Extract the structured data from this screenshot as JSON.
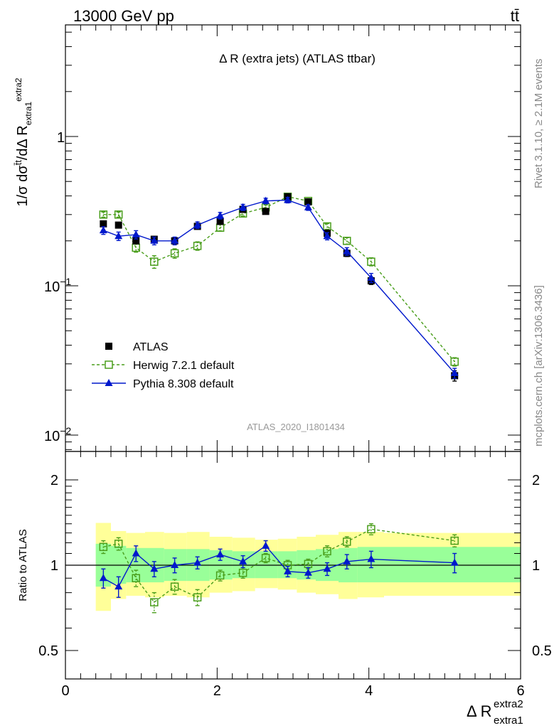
{
  "header": {
    "energy_label": "13000 GeV pp",
    "process_label": "tt̄",
    "plot_title": "Δ R (extra jets) (ATLAS ttbar)",
    "analysis_id": "ATLAS_2020_I1801434",
    "side_label_rivet": "Rivet 3.1.10, ≥ 2.1M events",
    "side_label_site": "mcplots.cern.ch [arXiv:1306.3436]"
  },
  "axes": {
    "main_ylabel_html": "1/σ dσ^{t̄t}/dΔ R_{extra1}^{extra2}",
    "ratio_ylabel": "Ratio to ATLAS",
    "xlabel": "Δ R",
    "xlabel_sup": "extra2",
    "xlabel_sub": "extra1"
  },
  "legend": [
    {
      "label": "ATLAS",
      "series": "ATLAS"
    },
    {
      "label": "Herwig 7.2.1 default",
      "series": "Herwig"
    },
    {
      "label": "Pythia 8.308 default",
      "series": "Pythia"
    }
  ],
  "colors": {
    "atlas": "#000000",
    "herwig": "#4a9e1c",
    "pythia": "#0018cc",
    "band_inner": "#99ff99",
    "band_outer": "#ffff99"
  },
  "chart_data": [
    {
      "type": "scatter",
      "name": "main",
      "xlim": [
        0,
        6
      ],
      "ylim": [
        0.008,
        6
      ],
      "yscale": "log",
      "xticks": [
        0,
        2,
        4,
        6
      ],
      "yticks": [
        {
          "value": 0.01,
          "base": "10",
          "exp": "−2"
        },
        {
          "value": 0.1,
          "base": "10",
          "exp": "−1"
        },
        {
          "value": 1,
          "base": "1",
          "exp": ""
        }
      ],
      "x": [
        0.5,
        0.7,
        0.93,
        1.17,
        1.44,
        1.74,
        2.04,
        2.34,
        2.64,
        2.93,
        3.2,
        3.45,
        3.71,
        4.03,
        5.13
      ],
      "series": [
        {
          "name": "ATLAS",
          "style": "marker-square-filled",
          "values": [
            0.26,
            0.255,
            0.2,
            0.205,
            0.2,
            0.25,
            0.27,
            0.325,
            0.315,
            0.395,
            0.365,
            0.225,
            0.165,
            0.108,
            0.025
          ],
          "errors": [
            0.01,
            0.01,
            0.008,
            0.008,
            0.008,
            0.01,
            0.01,
            0.012,
            0.012,
            0.014,
            0.013,
            0.01,
            0.008,
            0.006,
            0.002
          ]
        },
        {
          "name": "Herwig",
          "style": "open-square-dashed",
          "values": [
            0.3,
            0.3,
            0.18,
            0.145,
            0.165,
            0.185,
            0.245,
            0.305,
            0.335,
            0.395,
            0.37,
            0.25,
            0.2,
            0.145,
            0.031
          ],
          "errors": [
            0.012,
            0.012,
            0.012,
            0.014,
            0.012,
            0.012,
            0.012,
            0.012,
            0.013,
            0.014,
            0.013,
            0.011,
            0.01,
            0.009,
            0.002
          ]
        },
        {
          "name": "Pythia",
          "style": "filled-triangle-solid",
          "values": [
            0.235,
            0.215,
            0.22,
            0.2,
            0.2,
            0.255,
            0.295,
            0.335,
            0.37,
            0.375,
            0.335,
            0.215,
            0.17,
            0.113,
            0.026
          ],
          "errors": [
            0.014,
            0.014,
            0.014,
            0.012,
            0.012,
            0.013,
            0.015,
            0.016,
            0.016,
            0.016,
            0.015,
            0.012,
            0.01,
            0.008,
            0.002
          ]
        }
      ]
    },
    {
      "type": "scatter",
      "name": "ratio",
      "xlim": [
        0,
        6
      ],
      "ylim": [
        0.4,
        2.5
      ],
      "yscale": "log",
      "yticks": [
        0.5,
        1,
        2
      ],
      "ytick_labels": [
        "0.5",
        "1",
        "2"
      ],
      "x": [
        0.5,
        0.7,
        0.93,
        1.17,
        1.44,
        1.74,
        2.04,
        2.34,
        2.64,
        2.93,
        3.2,
        3.45,
        3.71,
        4.03,
        5.13
      ],
      "bands": {
        "edges": [
          0.4,
          0.6,
          0.8,
          1.05,
          1.3,
          1.6,
          1.9,
          2.2,
          2.5,
          2.8,
          3.05,
          3.3,
          3.6,
          3.85,
          4.2,
          6.0
        ],
        "inner": [
          [
            0.84,
            1.19
          ],
          [
            0.86,
            1.17
          ],
          [
            0.87,
            1.15
          ],
          [
            0.87,
            1.15
          ],
          [
            0.88,
            1.14
          ],
          [
            0.88,
            1.14
          ],
          [
            0.89,
            1.13
          ],
          [
            0.9,
            1.12
          ],
          [
            0.9,
            1.12
          ],
          [
            0.9,
            1.12
          ],
          [
            0.89,
            1.13
          ],
          [
            0.88,
            1.14
          ],
          [
            0.87,
            1.15
          ],
          [
            0.87,
            1.16
          ],
          [
            0.87,
            1.16
          ]
        ],
        "outer": [
          [
            0.69,
            1.41
          ],
          [
            0.76,
            1.32
          ],
          [
            0.78,
            1.3
          ],
          [
            0.77,
            1.31
          ],
          [
            0.78,
            1.3
          ],
          [
            0.77,
            1.31
          ],
          [
            0.8,
            1.26
          ],
          [
            0.81,
            1.25
          ],
          [
            0.83,
            1.23
          ],
          [
            0.82,
            1.24
          ],
          [
            0.8,
            1.26
          ],
          [
            0.79,
            1.28
          ],
          [
            0.76,
            1.31
          ],
          [
            0.77,
            1.31
          ],
          [
            0.78,
            1.3
          ]
        ]
      },
      "series": [
        {
          "name": "Herwig",
          "style": "open-square-dashed",
          "values": [
            1.16,
            1.19,
            0.9,
            0.74,
            0.84,
            0.77,
            0.92,
            0.94,
            1.06,
            1.0,
            1.01,
            1.12,
            1.21,
            1.34,
            1.22
          ],
          "errors": [
            0.06,
            0.06,
            0.06,
            0.06,
            0.05,
            0.05,
            0.04,
            0.04,
            0.04,
            0.04,
            0.04,
            0.05,
            0.05,
            0.06,
            0.06
          ]
        },
        {
          "name": "Pythia",
          "style": "filled-triangle-solid",
          "values": [
            0.9,
            0.84,
            1.1,
            0.97,
            1.0,
            1.02,
            1.09,
            1.03,
            1.17,
            0.95,
            0.94,
            0.97,
            1.03,
            1.05,
            1.02
          ],
          "errors": [
            0.07,
            0.07,
            0.07,
            0.06,
            0.06,
            0.05,
            0.05,
            0.05,
            0.05,
            0.04,
            0.04,
            0.05,
            0.06,
            0.07,
            0.08
          ]
        }
      ]
    }
  ]
}
